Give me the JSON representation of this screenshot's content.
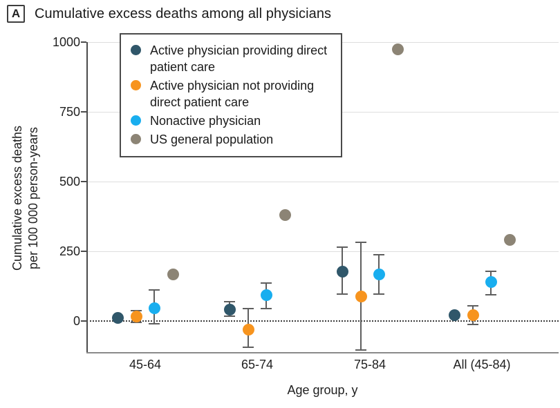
{
  "header": {
    "panel_label": "A",
    "title": "Cumulative excess deaths among all physicians"
  },
  "chart_data": {
    "type": "scatter",
    "title": "Cumulative excess deaths among all physicians",
    "xlabel": "Age group, y",
    "ylabel": "Cumulative excess deaths per 100 000 person-years",
    "ylabel_lines": [
      "Cumulative excess deaths",
      "per 100 000 person-years"
    ],
    "categories": [
      "45-64",
      "65-74",
      "75-84",
      "All (45-84)"
    ],
    "yticks": [
      0,
      250,
      500,
      750,
      1000
    ],
    "ylim": [
      -112,
      1040
    ],
    "grid": "horizontal gridlines at 250, 500, 750, 1000; dotted baseline at 0",
    "legend_position": "top-left inside plot area",
    "series": [
      {
        "name": "Active physician providing direct patient care",
        "color": "#30576A",
        "values": [
          10,
          42,
          178,
          22
        ],
        "ci": [
          null,
          [
            17,
            69
          ],
          [
            97,
            265
          ],
          null
        ]
      },
      {
        "name": "Active physician not providing direct patient care",
        "color": "#F7941E",
        "values": [
          17,
          -30,
          89,
          20
        ],
        "ci": [
          [
            -5,
            38
          ],
          [
            -94,
            44
          ],
          [
            -104,
            282
          ],
          [
            -12,
            54
          ]
        ]
      },
      {
        "name": "Nonactive physician",
        "color": "#19AEEF",
        "values": [
          47,
          94,
          166,
          139
        ],
        "ci": [
          [
            -10,
            112
          ],
          [
            45,
            136
          ],
          [
            97,
            238
          ],
          [
            94,
            178
          ]
        ]
      },
      {
        "name": "US general population",
        "color": "#8C8475",
        "values": [
          168,
          381,
          975,
          290
        ],
        "ci": [
          null,
          null,
          null,
          null
        ]
      }
    ]
  },
  "style_colors": {
    "error_bar": "#5E5E5E",
    "gridline": "#DEDEDE",
    "y_axis": "#4A4A4A",
    "x_axis": "#8A8A8A"
  }
}
